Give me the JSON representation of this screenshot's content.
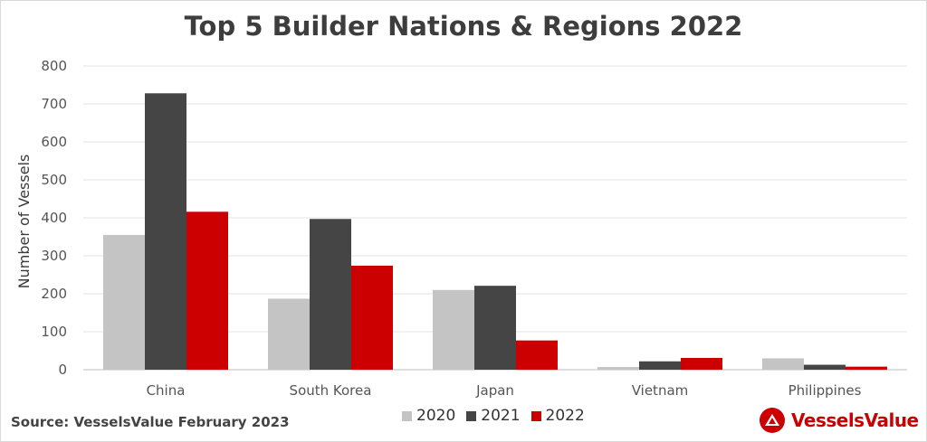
{
  "chart_data": {
    "type": "bar",
    "title": "Top 5 Builder Nations & Regions 2022",
    "xlabel": "",
    "ylabel": "Number of Vessels",
    "ylim": [
      0,
      800
    ],
    "yticks": [
      "0",
      "100",
      "200",
      "300",
      "400",
      "500",
      "600",
      "700",
      "800"
    ],
    "grid": true,
    "legend_position": "bottom",
    "categories": [
      "China",
      "South Korea",
      "Japan",
      "Vietnam",
      "Philippines"
    ],
    "series": [
      {
        "name": "2020",
        "color": "#c4c4c4",
        "values": [
          355,
          187,
          210,
          7,
          30
        ]
      },
      {
        "name": "2021",
        "color": "#454545",
        "values": [
          728,
          397,
          221,
          22,
          13
        ]
      },
      {
        "name": "2022",
        "color": "#cc0000",
        "values": [
          416,
          274,
          77,
          31,
          8
        ]
      }
    ]
  },
  "footer": {
    "source": "Source: VesselsValue February 2023",
    "brand": "VesselsValue",
    "brand_color": "#cc0000",
    "brand_icon": "vesselsvalue-logo-icon"
  }
}
